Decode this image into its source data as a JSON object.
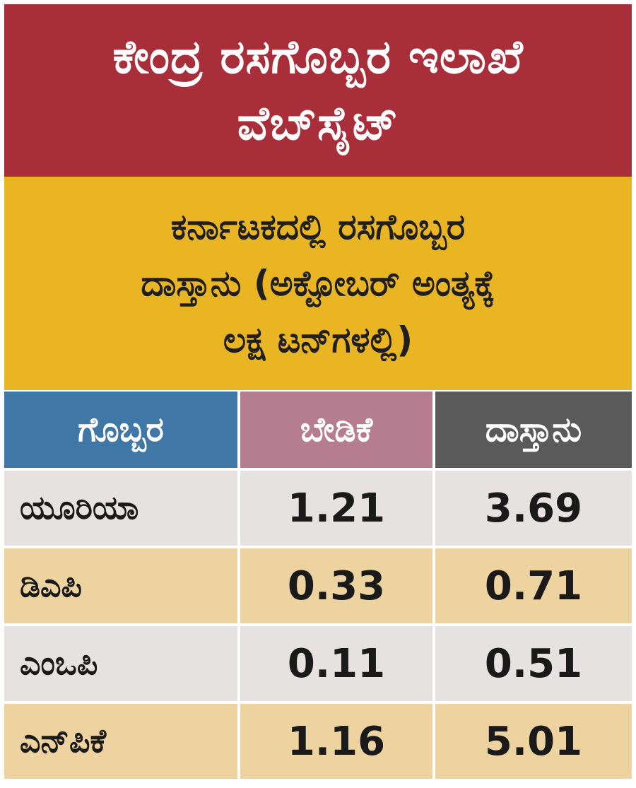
{
  "header": {
    "title_lines": [
      "ಕೇಂದ್ರ ರಸಗೊಬ್ಬರ ಇಲಾಖೆ",
      "ವೆಬ್‌ಸೈಟ್"
    ],
    "subtitle_lines": [
      "ಕರ್ನಾಟಕದಲ್ಲಿ ರಸಗೊಬ್ಬರ",
      "ದಾಸ್ತಾನು (ಅಕ್ಟೋಬರ್ ಅಂತ್ಯಕ್ಕೆ",
      "ಲಕ್ಷ ಟನ್‌ಗಳಲ್ಲಿ)"
    ]
  },
  "colors": {
    "title_bg": "#a82f3a",
    "subtitle_bg": "#e9b523",
    "col_fertilizer": "#3f78a6",
    "col_demand": "#b67d91",
    "col_stock": "#5a5a5a",
    "row_light": "#e6e2e1",
    "row_tan": "#ecd39f"
  },
  "chart_data": {
    "type": "table",
    "columns": [
      "ಗೊಬ್ಬರ",
      "ಬೇಡಿಕೆ",
      "ದಾಸ್ತಾನು"
    ],
    "rows": [
      {
        "fertilizer": "ಯೂರಿಯಾ",
        "demand": "1.21",
        "stock": "3.69"
      },
      {
        "fertilizer": "ಡಿಎಪಿ",
        "demand": "0.33",
        "stock": "0.71"
      },
      {
        "fertilizer": "ಎಂಒಪಿ",
        "demand": "0.11",
        "stock": "0.51"
      },
      {
        "fertilizer": "ಎನ್‌ಪಿಕೆ",
        "demand": "1.16",
        "stock": "5.01"
      }
    ]
  }
}
